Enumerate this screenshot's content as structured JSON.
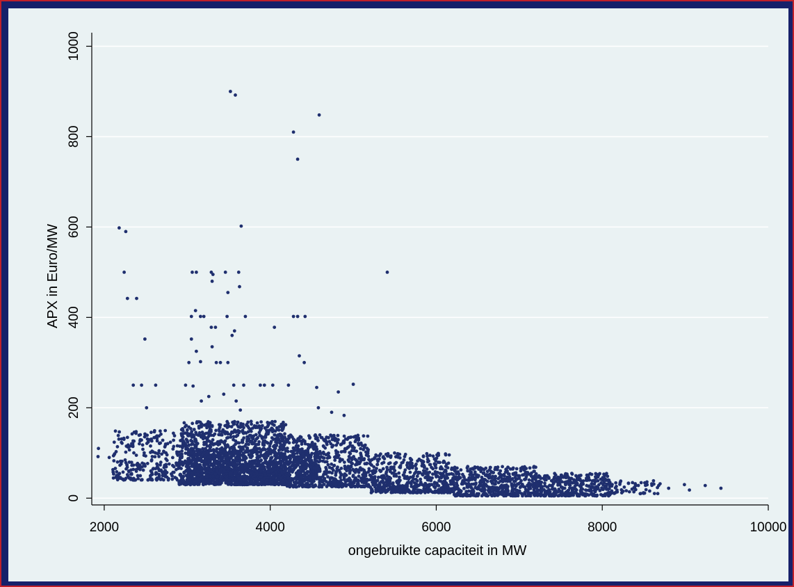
{
  "chart_data": {
    "type": "scatter",
    "title": "",
    "xlabel": "ongebruikte capaciteit in MW",
    "ylabel": "APX in Euro/MW",
    "xlim": [
      1850,
      10000
    ],
    "ylim": [
      -15,
      1030
    ],
    "xticks": [
      2000,
      4000,
      6000,
      8000,
      10000
    ],
    "yticks": [
      0,
      200,
      400,
      600,
      800,
      1000
    ],
    "grid": "horizontal",
    "legend": "none",
    "marker_color": "#1f2f6e",
    "points": [
      [
        3520,
        900
      ],
      [
        3580,
        892
      ],
      [
        4590,
        848
      ],
      [
        4280,
        810
      ],
      [
        4330,
        750
      ],
      [
        2180,
        598
      ],
      [
        2260,
        590
      ],
      [
        3650,
        602
      ],
      [
        2240,
        500
      ],
      [
        3060,
        500
      ],
      [
        3110,
        500
      ],
      [
        3290,
        500
      ],
      [
        3310,
        495
      ],
      [
        3460,
        500
      ],
      [
        3620,
        500
      ],
      [
        5410,
        500
      ],
      [
        3300,
        480
      ],
      [
        3630,
        468
      ],
      [
        3490,
        455
      ],
      [
        2280,
        442
      ],
      [
        2390,
        442
      ],
      [
        3050,
        402
      ],
      [
        3160,
        402
      ],
      [
        3200,
        402
      ],
      [
        3480,
        402
      ],
      [
        3700,
        402
      ],
      [
        4280,
        402
      ],
      [
        4330,
        402
      ],
      [
        4420,
        402
      ],
      [
        3100,
        415
      ],
      [
        3290,
        378
      ],
      [
        3340,
        378
      ],
      [
        4050,
        378
      ],
      [
        3570,
        370
      ],
      [
        3540,
        360
      ],
      [
        2490,
        352
      ],
      [
        3050,
        352
      ],
      [
        3300,
        335
      ],
      [
        3110,
        325
      ],
      [
        4350,
        315
      ],
      [
        3020,
        300
      ],
      [
        3160,
        302
      ],
      [
        3350,
        300
      ],
      [
        3400,
        300
      ],
      [
        3490,
        300
      ],
      [
        4410,
        300
      ],
      [
        2350,
        250
      ],
      [
        2450,
        250
      ],
      [
        2620,
        250
      ],
      [
        2980,
        250
      ],
      [
        3070,
        248
      ],
      [
        3560,
        250
      ],
      [
        3680,
        250
      ],
      [
        3880,
        250
      ],
      [
        3930,
        250
      ],
      [
        4030,
        250
      ],
      [
        4220,
        250
      ],
      [
        4560,
        245
      ],
      [
        5000,
        252
      ],
      [
        4820,
        235
      ],
      [
        3260,
        225
      ],
      [
        3440,
        230
      ],
      [
        3590,
        215
      ],
      [
        3170,
        215
      ],
      [
        3640,
        195
      ],
      [
        4580,
        200
      ],
      [
        2510,
        200
      ],
      [
        4740,
        190
      ],
      [
        4890,
        183
      ],
      [
        1930,
        110
      ],
      [
        1925,
        92
      ],
      [
        2060,
        90
      ],
      [
        2160,
        80
      ],
      [
        9430,
        22
      ],
      [
        9240,
        28
      ],
      [
        9050,
        18
      ],
      [
        8990,
        30
      ],
      [
        8800,
        22
      ],
      [
        8680,
        28
      ]
    ],
    "clusters": [
      {
        "x": [
          2100,
          2900
        ],
        "y": [
          40,
          150
        ],
        "n": 260
      },
      {
        "x": [
          2900,
          4200
        ],
        "y": [
          30,
          170
        ],
        "n": 1300
      },
      {
        "x": [
          3000,
          4600
        ],
        "y": [
          40,
          110
        ],
        "n": 900
      },
      {
        "x": [
          4200,
          5200
        ],
        "y": [
          25,
          140
        ],
        "n": 650
      },
      {
        "x": [
          5200,
          6200
        ],
        "y": [
          12,
          100
        ],
        "n": 550
      },
      {
        "x": [
          6200,
          7200
        ],
        "y": [
          5,
          70
        ],
        "n": 500
      },
      {
        "x": [
          7200,
          8100
        ],
        "y": [
          5,
          55
        ],
        "n": 380
      },
      {
        "x": [
          8100,
          8700
        ],
        "y": [
          10,
          40
        ],
        "n": 60
      }
    ]
  }
}
